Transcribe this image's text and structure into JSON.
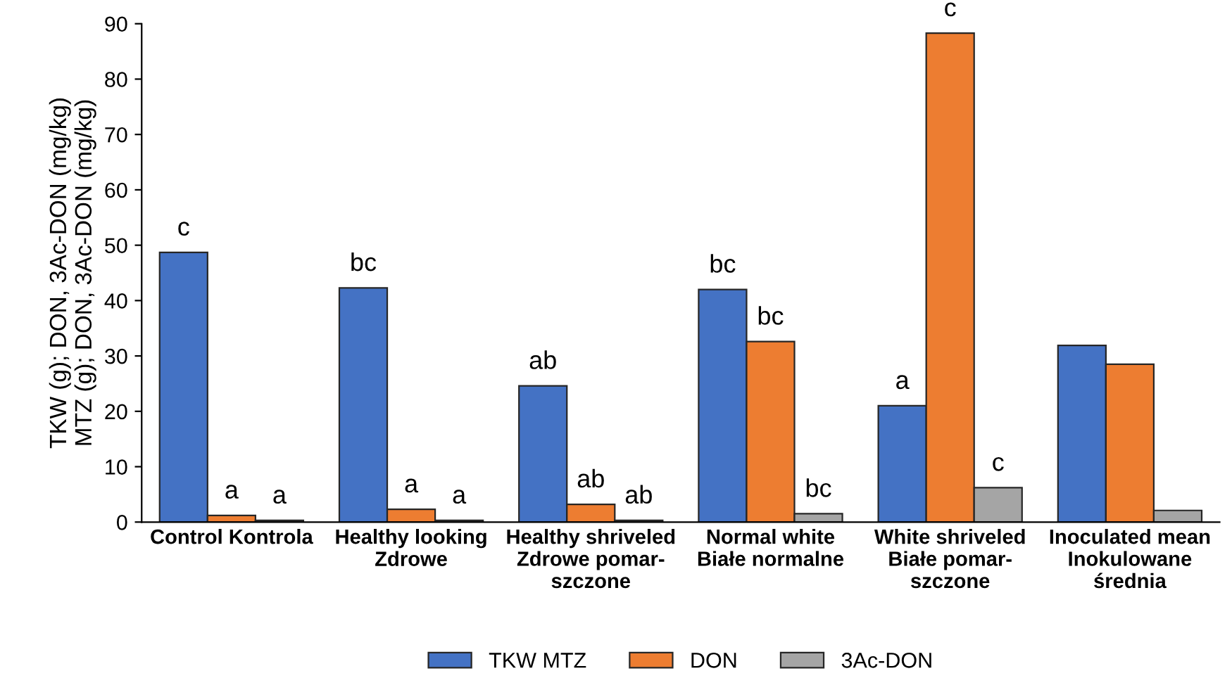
{
  "chart_data": {
    "type": "bar",
    "ylabel": "TKW (g); DON, 3Ac-DON (mg/kg)\nMTZ (g); DON, 3Ac-DON (mg/kg)",
    "categories": [
      "Control Kontrola",
      "Healthy looking\nZdrowe",
      "Healthy shriveled\nZdrowe pomar-\nszczone",
      "Normal white\nBiałe normalne",
      "White shriveled\nBiałe pomar-\nszczone",
      "Inoculated mean\nInokulowane\nśrednia"
    ],
    "series": [
      {
        "name": "TKW MTZ",
        "color": "#4472c4",
        "values": [
          48.7,
          42.3,
          24.6,
          42.0,
          21.0,
          31.9
        ]
      },
      {
        "name": "DON",
        "color": "#ed7d31",
        "values": [
          1.2,
          2.3,
          3.2,
          32.6,
          88.3,
          28.5
        ]
      },
      {
        "name": "3Ac-DON",
        "color": "#a5a5a5",
        "values": [
          0.3,
          0.3,
          0.3,
          1.5,
          6.2,
          2.1
        ]
      }
    ],
    "annotations": [
      "c",
      "a",
      "a",
      "bc",
      "a",
      "a",
      "ab",
      "ab",
      "ab",
      "bc",
      "bc",
      "bc",
      "a",
      "c",
      "c"
    ],
    "ylim": [
      0,
      90
    ],
    "yticks": [
      0,
      10,
      20,
      30,
      40,
      50,
      60,
      70,
      80,
      90
    ],
    "grid": false,
    "legend": "bottom"
  }
}
